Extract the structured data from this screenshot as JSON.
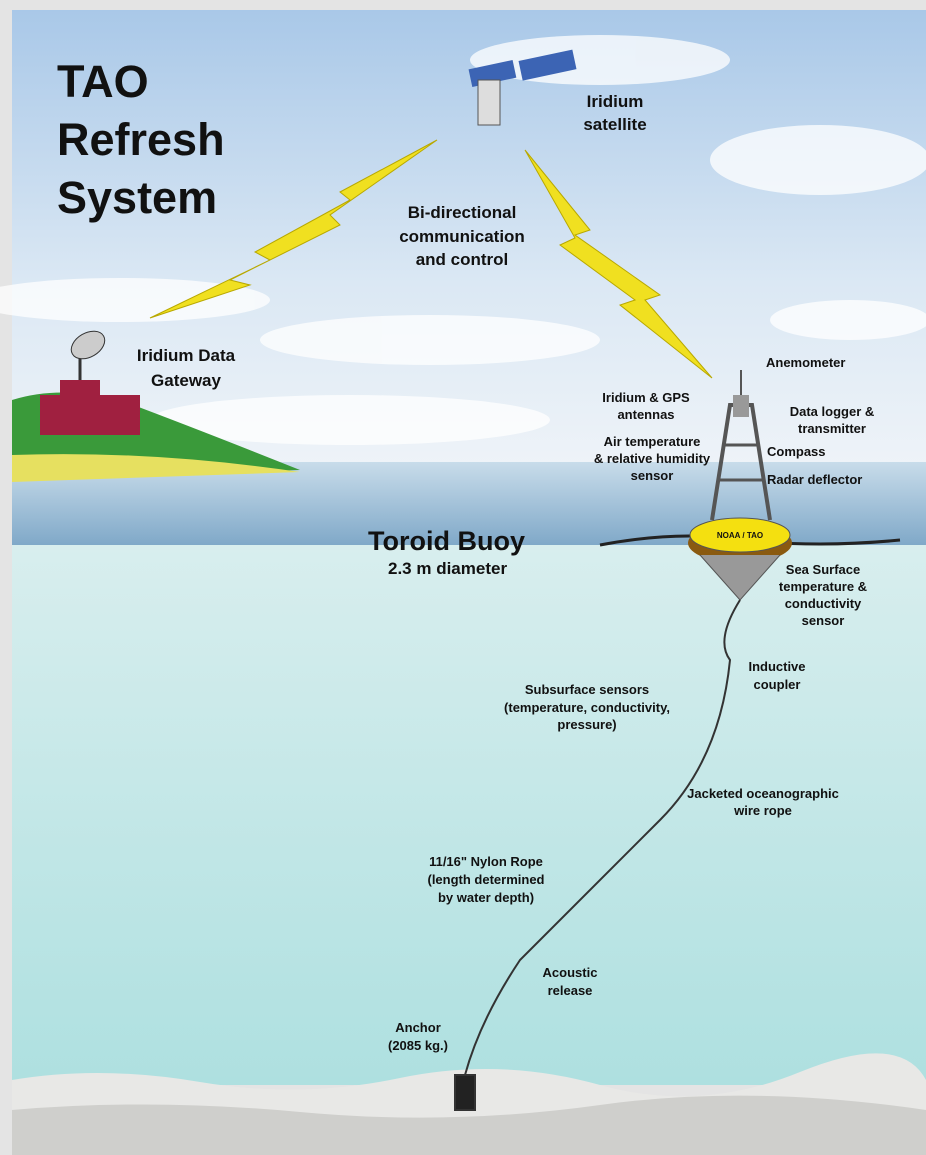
{
  "title": {
    "lines": [
      "TAO",
      "Refresh",
      "System"
    ]
  },
  "labels": {
    "satellite": {
      "lines": [
        "Iridium",
        "satellite"
      ]
    },
    "communication": {
      "lines": [
        "Bi-directional",
        "communication",
        "and control"
      ]
    },
    "gateway": {
      "lines": [
        "Iridium Data",
        "Gateway"
      ]
    },
    "anemometer": {
      "lines": [
        "Anemometer"
      ]
    },
    "antennas": {
      "lines": [
        "Iridium & GPS",
        "antennas"
      ]
    },
    "data_logger": {
      "lines": [
        "Data logger &",
        "transmitter"
      ]
    },
    "air_temperature": {
      "lines": [
        "Air temperature",
        "& relative humidity",
        "sensor"
      ]
    },
    "compass": {
      "lines": [
        "Compass"
      ]
    },
    "radar": {
      "lines": [
        "Radar deflector"
      ]
    },
    "buoy_mark": {
      "lines": [
        "NOAA / TAO"
      ]
    },
    "buoy": {
      "lines": [
        "Toroid Buoy",
        "2.3 m diameter"
      ]
    },
    "sea_surface": {
      "lines": [
        "Sea Surface",
        "temperature &",
        "conductivity",
        "sensor"
      ]
    },
    "coupler": {
      "lines": [
        "Inductive",
        "coupler"
      ]
    },
    "subsurface": {
      "lines": [
        "Subsurface sensors",
        "(temperature, conductivity,",
        "pressure)"
      ]
    },
    "wire_rope": {
      "lines": [
        "Jacketed oceanographic",
        "wire rope"
      ]
    },
    "nylon_rope": {
      "lines": [
        "11/16\" Nylon Rope",
        "(length determined",
        "by water depth)"
      ]
    },
    "release": {
      "lines": [
        "Acoustic",
        "release"
      ]
    },
    "anchor": {
      "lines": [
        "Anchor",
        "(2085 kg.)"
      ]
    }
  }
}
